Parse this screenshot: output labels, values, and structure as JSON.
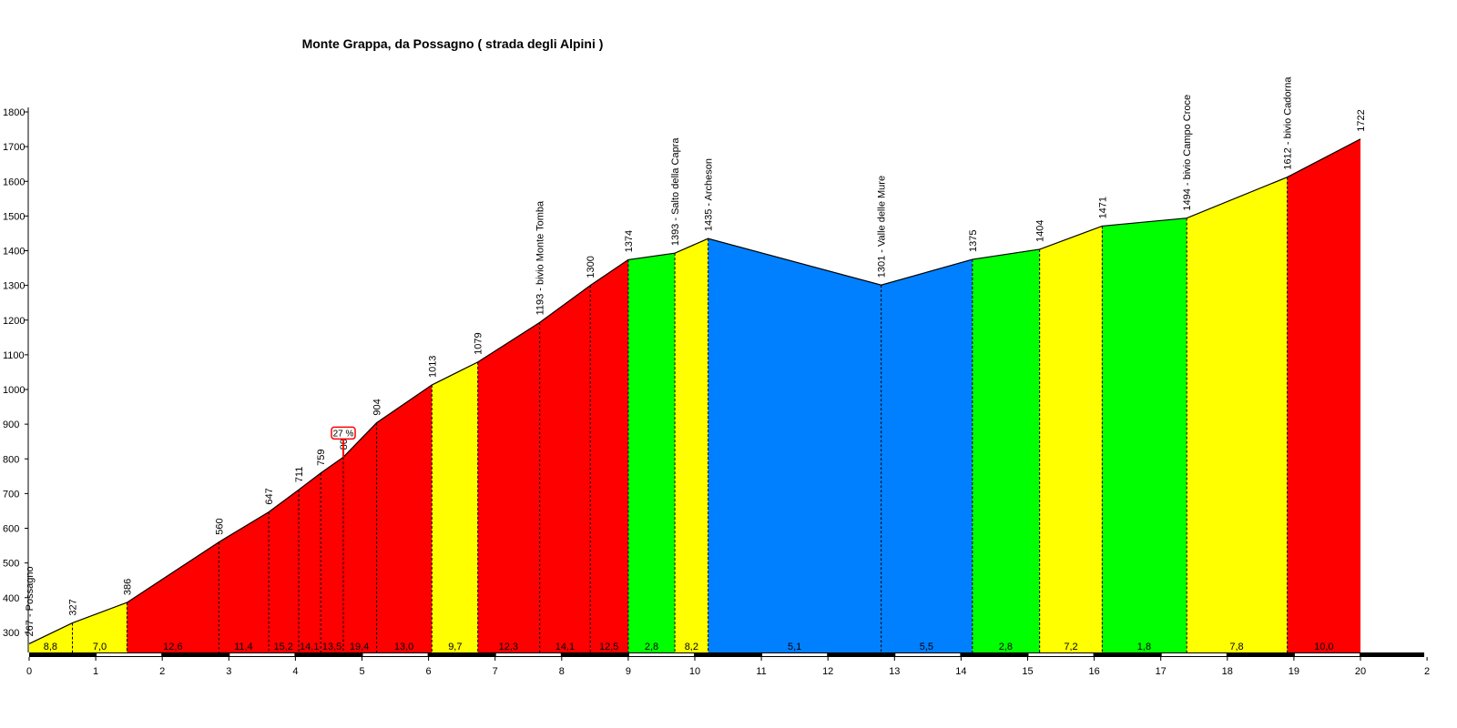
{
  "chart_data": {
    "type": "area",
    "title": "Monte Grappa, da Possagno ( strada degli Alpini )",
    "xlabel": "",
    "ylabel": "",
    "xlim": [
      0,
      21
    ],
    "ylim": [
      250,
      1800
    ],
    "x_ticks": [
      "0",
      "1",
      "2",
      "3",
      "4",
      "5",
      "6",
      "7",
      "8",
      "9",
      "10",
      "11",
      "12",
      "13",
      "14",
      "15",
      "16",
      "17",
      "18",
      "19",
      "20",
      "2"
    ],
    "y_ticks": [
      "1800",
      "1700",
      "1600",
      "1500",
      "1400",
      "1300",
      "1200",
      "1100",
      "1000",
      "900",
      "800",
      "700",
      "600",
      "500",
      "400",
      "300"
    ],
    "profile": [
      {
        "km": 0.0,
        "alt": 267,
        "label": "267 - Possagno"
      },
      {
        "km": 0.65,
        "alt": 327,
        "label": "327"
      },
      {
        "km": 1.47,
        "alt": 386,
        "label": "386"
      },
      {
        "km": 2.85,
        "alt": 560,
        "label": "560"
      },
      {
        "km": 3.6,
        "alt": 647,
        "label": "647"
      },
      {
        "km": 4.05,
        "alt": 711,
        "label": "711"
      },
      {
        "km": 4.38,
        "alt": 759,
        "label": "759"
      },
      {
        "km": 4.72,
        "alt": 805,
        "label": "805"
      },
      {
        "km": 5.22,
        "alt": 904,
        "label": "904"
      },
      {
        "km": 6.05,
        "alt": 1013,
        "label": "1013"
      },
      {
        "km": 6.74,
        "alt": 1079,
        "label": "1079"
      },
      {
        "km": 7.67,
        "alt": 1193,
        "label": "1193 - bivio Monte Tomba"
      },
      {
        "km": 8.43,
        "alt": 1300,
        "label": "1300"
      },
      {
        "km": 9.0,
        "alt": 1374,
        "label": "1374"
      },
      {
        "km": 9.7,
        "alt": 1393,
        "label": "1393 - Salto della Capra"
      },
      {
        "km": 10.2,
        "alt": 1435,
        "label": "1435 - Archeson"
      },
      {
        "km": 12.8,
        "alt": 1301,
        "label": "1301 - Valle delle Mure"
      },
      {
        "km": 14.17,
        "alt": 1375,
        "label": "1375"
      },
      {
        "km": 15.18,
        "alt": 1404,
        "label": "1404"
      },
      {
        "km": 16.12,
        "alt": 1471,
        "label": "1471"
      },
      {
        "km": 17.39,
        "alt": 1494,
        "label": "1494 - bivio Campo Croce"
      },
      {
        "km": 18.9,
        "alt": 1612,
        "label": "1612 - bivio Cadorna"
      },
      {
        "km": 20.0,
        "alt": 1722,
        "label": "1722"
      }
    ],
    "segments": [
      {
        "from": 0,
        "to": 2,
        "grade": "8,8",
        "color": "#ffff00"
      },
      {
        "from": 1,
        "to": 2,
        "grade": "7,0",
        "color": "#ffff00"
      },
      {
        "from": 2,
        "to": 3,
        "grade": "12,6",
        "color": "#ff0000"
      },
      {
        "from": 3,
        "to": 4,
        "grade": "11,4",
        "color": "#ff0000"
      },
      {
        "from": 4,
        "to": 5,
        "grade": "15,2",
        "color": "#ff0000"
      },
      {
        "from": 5,
        "to": 6,
        "grade": "14,1",
        "color": "#ff0000"
      },
      {
        "from": 6,
        "to": 7,
        "grade": "13,5",
        "color": "#ff0000"
      },
      {
        "from": 7,
        "to": 8,
        "grade": "19,4",
        "color": "#ff0000"
      },
      {
        "from": 8,
        "to": 9,
        "grade": "13,0",
        "color": "#ff0000"
      },
      {
        "from": 9,
        "to": 10,
        "grade": "9,7",
        "color": "#ffff00"
      },
      {
        "from": 10,
        "to": 11,
        "grade": "12,3",
        "color": "#ff0000"
      },
      {
        "from": 11,
        "to": 12,
        "grade": "14,1",
        "color": "#ff0000"
      },
      {
        "from": 12,
        "to": 13,
        "grade": "12,5",
        "color": "#ff0000"
      },
      {
        "from": 13,
        "to": 14,
        "grade": "2,8",
        "color": "#00ff00"
      },
      {
        "from": 14,
        "to": 15,
        "grade": "8,2",
        "color": "#ffff00"
      },
      {
        "from": 15,
        "to": 16,
        "grade": "5,1",
        "color": "#0080ff"
      },
      {
        "from": 16,
        "to": 17,
        "grade": "5,5",
        "color": "#0080ff"
      },
      {
        "from": 17,
        "to": 18,
        "grade": "2,8",
        "color": "#00ff00"
      },
      {
        "from": 18,
        "to": 19,
        "grade": "7,2",
        "color": "#ffff00"
      },
      {
        "from": 19,
        "to": 20,
        "grade": "1,8",
        "color": "#00ff00"
      },
      {
        "from": 20,
        "to": 21,
        "grade": "7,8",
        "color": "#ffff00"
      },
      {
        "from": 21,
        "to": 22,
        "grade": "10,0",
        "color": "#ff0000"
      }
    ],
    "annotations": [
      {
        "km": 4.72,
        "alt": 805,
        "text": "27 %"
      }
    ],
    "grid": false,
    "legend": "none"
  }
}
